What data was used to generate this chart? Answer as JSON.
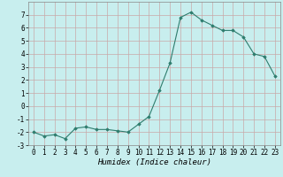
{
  "x": [
    0,
    1,
    2,
    3,
    4,
    5,
    6,
    7,
    8,
    9,
    10,
    11,
    12,
    13,
    14,
    15,
    16,
    17,
    18,
    19,
    20,
    21,
    22,
    23
  ],
  "y": [
    -2.0,
    -2.3,
    -2.2,
    -2.5,
    -1.7,
    -1.6,
    -1.8,
    -1.8,
    -1.9,
    -2.0,
    -1.4,
    -0.8,
    1.2,
    3.3,
    6.8,
    7.2,
    6.6,
    6.2,
    5.8,
    5.8,
    5.3,
    4.0,
    3.8,
    2.3
  ],
  "xlabel": "Humidex (Indice chaleur)",
  "ylim": [
    -3,
    8
  ],
  "xlim": [
    -0.5,
    23.5
  ],
  "yticks": [
    -3,
    -2,
    -1,
    0,
    1,
    2,
    3,
    4,
    5,
    6,
    7
  ],
  "xticks": [
    0,
    1,
    2,
    3,
    4,
    5,
    6,
    7,
    8,
    9,
    10,
    11,
    12,
    13,
    14,
    15,
    16,
    17,
    18,
    19,
    20,
    21,
    22,
    23
  ],
  "line_color": "#2e7d6e",
  "marker_color": "#2e7d6e",
  "bg_color": "#c8eeee",
  "grid_color": "#c8a8a8",
  "xlabel_fontsize": 6.5,
  "tick_fontsize": 5.5,
  "linewidth": 0.8,
  "markersize": 1.8
}
